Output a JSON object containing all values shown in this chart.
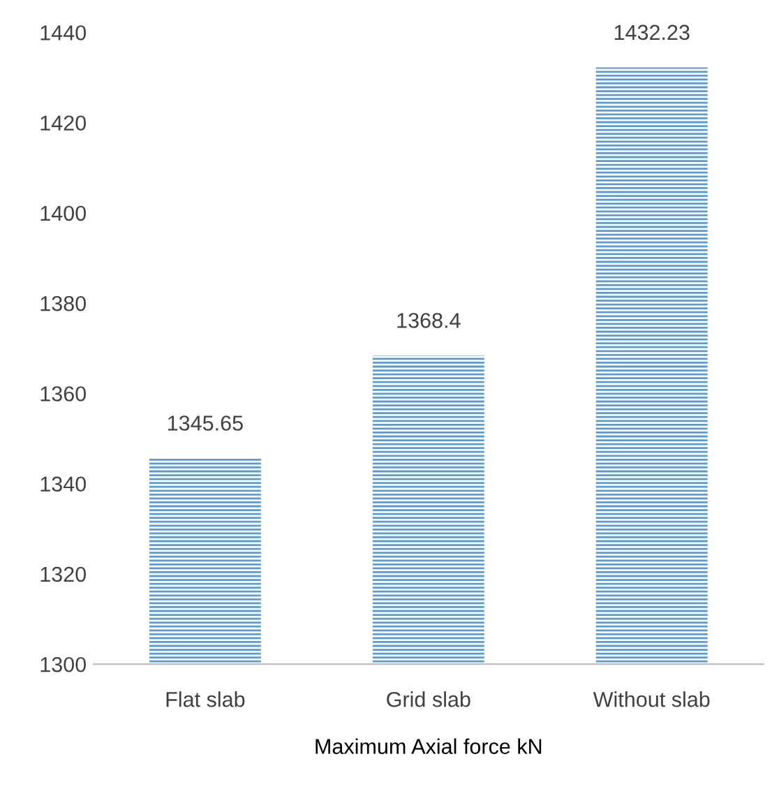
{
  "chart_data": {
    "type": "bar",
    "categories": [
      "Flat slab",
      "Grid slab",
      "Without slab"
    ],
    "values": [
      1345.65,
      1368.4,
      1432.23
    ],
    "color": "#5b9bd5",
    "xlabel": "Maximum Axial force kN",
    "ylim": [
      1300,
      1440
    ],
    "yticks": [
      1300,
      1320,
      1340,
      1360,
      1380,
      1400,
      1420,
      1440
    ],
    "data_labels": true,
    "grid": false,
    "legend": false
  }
}
